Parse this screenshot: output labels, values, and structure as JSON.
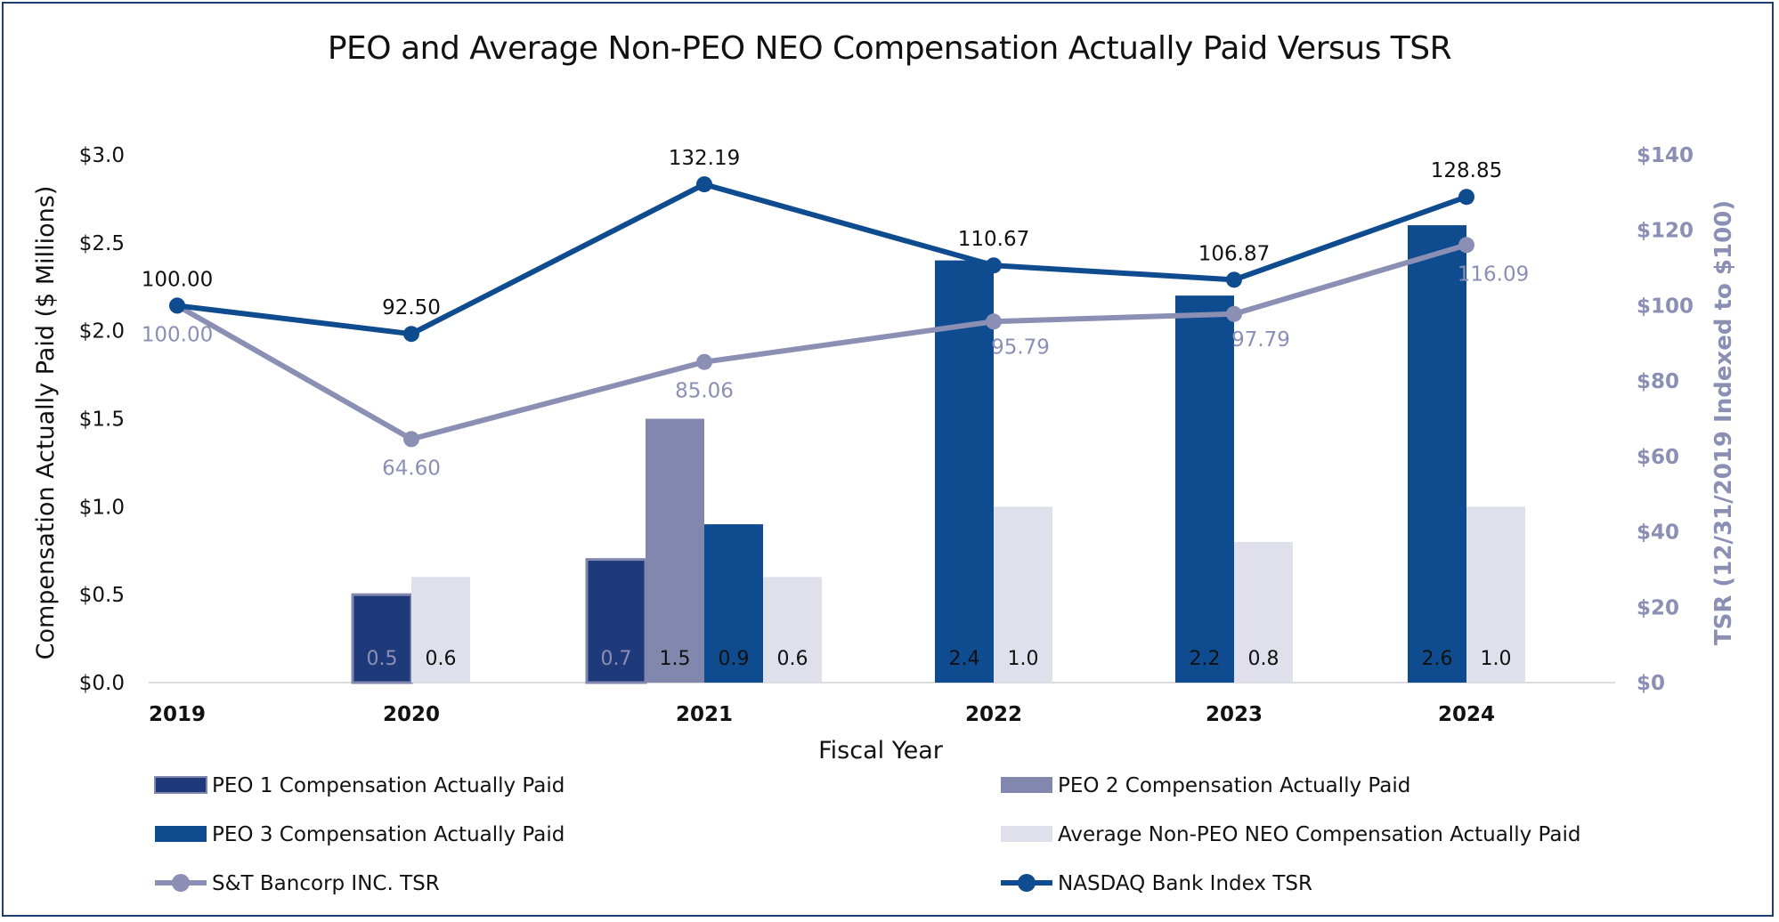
{
  "chart_data": {
    "type": "bar",
    "title": "PEO and Average Non-PEO NEO Compensation Actually Paid Versus TSR",
    "xlabel": "Fiscal Year",
    "ylabel": "Compensation Actually Paid ($ Millions)",
    "ylabel_right": "TSR (12/31/2019 Indexed to $100)",
    "categories": [
      "2019",
      "2020",
      "2021",
      "2022",
      "2023",
      "2024"
    ],
    "ylim": [
      0,
      3.0
    ],
    "ylim_right": [
      0,
      140
    ],
    "y_ticks": [
      "$0.0",
      "$0.5",
      "$1.0",
      "$1.5",
      "$2.0",
      "$2.5",
      "$3.0"
    ],
    "y_ticks_right": [
      "$0",
      "$20",
      "$40",
      "$60",
      "$80",
      "$100",
      "$120",
      "$140"
    ],
    "bar_series": [
      {
        "name": "PEO 1 Compensation Actually Paid",
        "color": "#1f3a7a",
        "values": [
          null,
          0.5,
          0.7,
          null,
          null,
          null
        ],
        "labels": [
          "",
          "0.5",
          "0.7",
          "",
          "",
          ""
        ]
      },
      {
        "name": "PEO 2 Compensation Actually Paid",
        "color": "#8287ae",
        "values": [
          null,
          null,
          1.5,
          null,
          null,
          null
        ],
        "labels": [
          "",
          "",
          "1.5",
          "",
          "",
          ""
        ]
      },
      {
        "name": "PEO 3 Compensation Actually Paid",
        "color": "#0e4b8f",
        "values": [
          null,
          null,
          0.9,
          2.4,
          2.2,
          2.6
        ],
        "labels": [
          "",
          "",
          "0.9",
          "2.4",
          "2.2",
          "2.6"
        ]
      },
      {
        "name": "Average Non-PEO NEO Compensation Actually Paid",
        "color": "#dfe0ec",
        "values": [
          null,
          0.6,
          0.6,
          1.0,
          0.8,
          1.0
        ],
        "labels": [
          "",
          "0.6",
          "0.6",
          "1.0",
          "0.8",
          "1.0"
        ]
      }
    ],
    "line_series": [
      {
        "name": "S&T Bancorp INC. TSR",
        "color": "#8b8fb4",
        "values": [
          100.0,
          64.6,
          85.06,
          95.79,
          97.79,
          116.09
        ],
        "labels": [
          "100.00",
          "64.60",
          "85.06",
          "95.79",
          "97.79",
          "116.09"
        ]
      },
      {
        "name": "NASDAQ Bank Index TSR",
        "color": "#0e4b8f",
        "values": [
          100.0,
          92.5,
          132.19,
          110.67,
          106.87,
          128.85
        ],
        "labels": [
          "100.00",
          "92.50",
          "132.19",
          "110.67",
          "106.87",
          "128.85"
        ]
      }
    ],
    "legend_position": "bottom"
  }
}
